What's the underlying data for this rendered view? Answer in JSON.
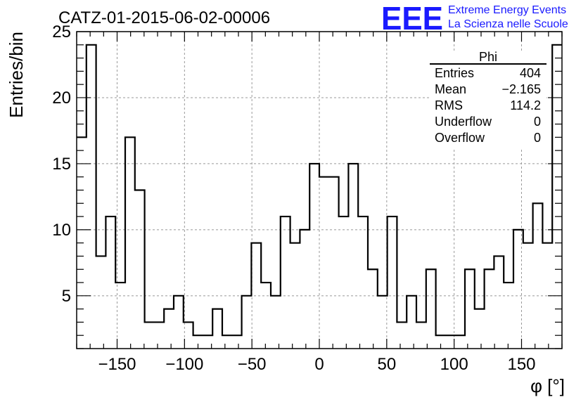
{
  "chart_data": {
    "type": "histogram",
    "title": "CATZ-01-2015-06-02-00006",
    "xlabel": "φ [°]",
    "ylabel": "Entries/bin",
    "xlim": [
      -180,
      180
    ],
    "ylim": [
      1,
      25
    ],
    "grid": true,
    "bin_width": 7.2,
    "values": [
      17,
      24,
      8,
      11,
      6,
      17,
      13,
      3,
      3,
      4,
      5,
      3,
      2,
      2,
      4,
      2,
      2,
      5,
      9,
      6,
      5,
      11,
      9,
      10,
      15,
      14,
      14,
      11,
      15,
      11,
      7,
      5,
      11,
      3,
      5,
      3,
      7,
      2,
      2,
      2,
      7,
      4,
      7,
      8,
      6,
      10,
      9,
      12,
      9,
      24
    ],
    "x_ticks": [
      {
        "value": -150,
        "label": "−150"
      },
      {
        "value": -100,
        "label": "−100"
      },
      {
        "value": -50,
        "label": "−50"
      },
      {
        "value": 0,
        "label": "0"
      },
      {
        "value": 50,
        "label": "50"
      },
      {
        "value": 100,
        "label": "100"
      },
      {
        "value": 150,
        "label": "150"
      }
    ],
    "y_ticks": [
      {
        "value": 5,
        "label": "5"
      },
      {
        "value": 10,
        "label": "10"
      },
      {
        "value": 15,
        "label": "15"
      },
      {
        "value": 20,
        "label": "20"
      },
      {
        "value": 25,
        "label": "25"
      }
    ],
    "stats_box": {
      "title": "Phi",
      "rows": [
        {
          "label": "Entries",
          "value": "404"
        },
        {
          "label": "Mean",
          "value": "−2.165"
        },
        {
          "label": "RMS",
          "value": "114.2"
        },
        {
          "label": "Underflow",
          "value": "0"
        },
        {
          "label": "Overflow",
          "value": "0"
        }
      ]
    },
    "logo": {
      "mark": "EEE",
      "line1": "Extreme Energy Events",
      "line2": "La Scienza nelle Scuole",
      "color": "#1a1aff"
    },
    "line_color": "#000000",
    "grid_color": "#999999"
  }
}
